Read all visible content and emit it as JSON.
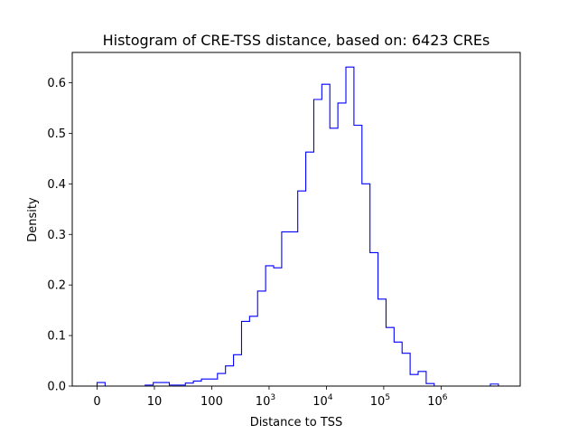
{
  "chart_data": {
    "type": "histogram",
    "title": "Histogram of CRE-TSS distance, based on: 6423 CREs",
    "xlabel": "Distance to TSS",
    "ylabel": "Density",
    "xscale": "symlog",
    "ylim": [
      0,
      0.66
    ],
    "y_ticks": [
      0.0,
      0.1,
      0.2,
      0.3,
      0.4,
      0.5,
      0.6
    ],
    "y_tick_labels": [
      "0.0",
      "0.1",
      "0.2",
      "0.3",
      "0.4",
      "0.5",
      "0.6"
    ],
    "x_ticks": [
      0,
      10,
      100,
      1000,
      10000,
      100000,
      1000000
    ],
    "x_tick_labels": [
      {
        "base": "0",
        "exp": ""
      },
      {
        "base": "10",
        "exp": ""
      },
      {
        "base": "100",
        "exp": ""
      },
      {
        "base": "10",
        "exp": "3"
      },
      {
        "base": "10",
        "exp": "4"
      },
      {
        "base": "10",
        "exp": "5"
      },
      {
        "base": "10",
        "exp": "6"
      }
    ],
    "grid": false,
    "line_color": "#0000ff",
    "bins": {
      "edges": [
        0,
        0.14,
        0.28,
        0.42,
        0.56,
        0.7,
        0.84,
        0.98,
        1.12,
        1.26,
        1.4,
        1.54,
        1.68,
        1.82,
        1.96,
        2.1,
        2.24,
        2.38,
        2.52,
        2.66,
        2.8,
        2.94,
        3.08,
        3.22,
        3.36,
        3.5,
        3.64,
        3.78,
        3.92,
        4.06,
        4.2,
        4.34,
        4.48,
        4.62,
        4.76,
        4.9,
        5.04,
        5.18,
        5.32,
        5.46,
        5.6,
        5.74,
        5.88,
        6.02,
        6.16,
        6.3,
        6.44,
        6.58,
        6.72,
        6.86,
        7.0
      ],
      "heights": [
        0.007,
        0.0,
        0.0,
        0.0,
        0.0,
        0.0,
        0.002,
        0.007,
        0.007,
        0.002,
        0.002,
        0.006,
        0.01,
        0.014,
        0.014,
        0.025,
        0.04,
        0.062,
        0.128,
        0.138,
        0.188,
        0.238,
        0.234,
        0.305,
        0.305,
        0.386,
        0.463,
        0.567,
        0.597,
        0.51,
        0.56,
        0.631,
        0.516,
        0.4,
        0.264,
        0.172,
        0.116,
        0.087,
        0.065,
        0.023,
        0.029,
        0.005,
        0.0,
        0.0,
        0.0,
        0.0,
        0.0,
        0.0,
        0.0,
        0.004
      ]
    }
  }
}
